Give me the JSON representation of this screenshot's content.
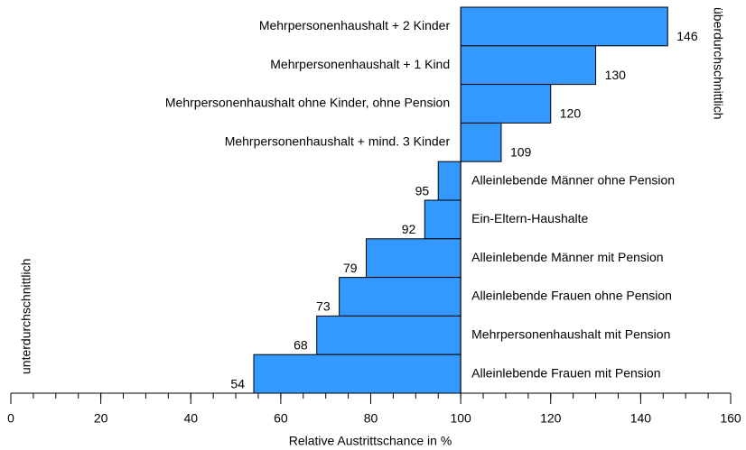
{
  "chart_data": {
    "type": "bar",
    "orientation": "horizontal",
    "xlabel": "Relative Austrittschance in %",
    "upper_label": "überdurchschnittlich",
    "lower_label": "unterdurchschnittlich",
    "categories": [
      "Mehrpersonenhaushalt + 2 Kinder",
      "Mehrpersonenhaushalt + 1 Kind",
      "Mehrpersonenhaushalt ohne Kinder, ohne Pension",
      "Mehrpersonenhaushalt + mind. 3 Kinder",
      "Alleinlebende Männer ohne Pension",
      "Ein-Eltern-Haushalte",
      "Alleinlebende Männer mit Pension",
      "Alleinlebende Frauen ohne Pension",
      "Mehrpersonenhaushalt mit Pension",
      "Alleinlebende Frauen mit Pension"
    ],
    "values": [
      146,
      130,
      120,
      109,
      95,
      92,
      79,
      73,
      68,
      54
    ],
    "color": "#3399ff",
    "baseline": 100,
    "xlim": [
      0,
      160
    ],
    "xticks": [
      0,
      20,
      40,
      60,
      80,
      100,
      120,
      140,
      160
    ],
    "minor_tick_step": 5
  }
}
